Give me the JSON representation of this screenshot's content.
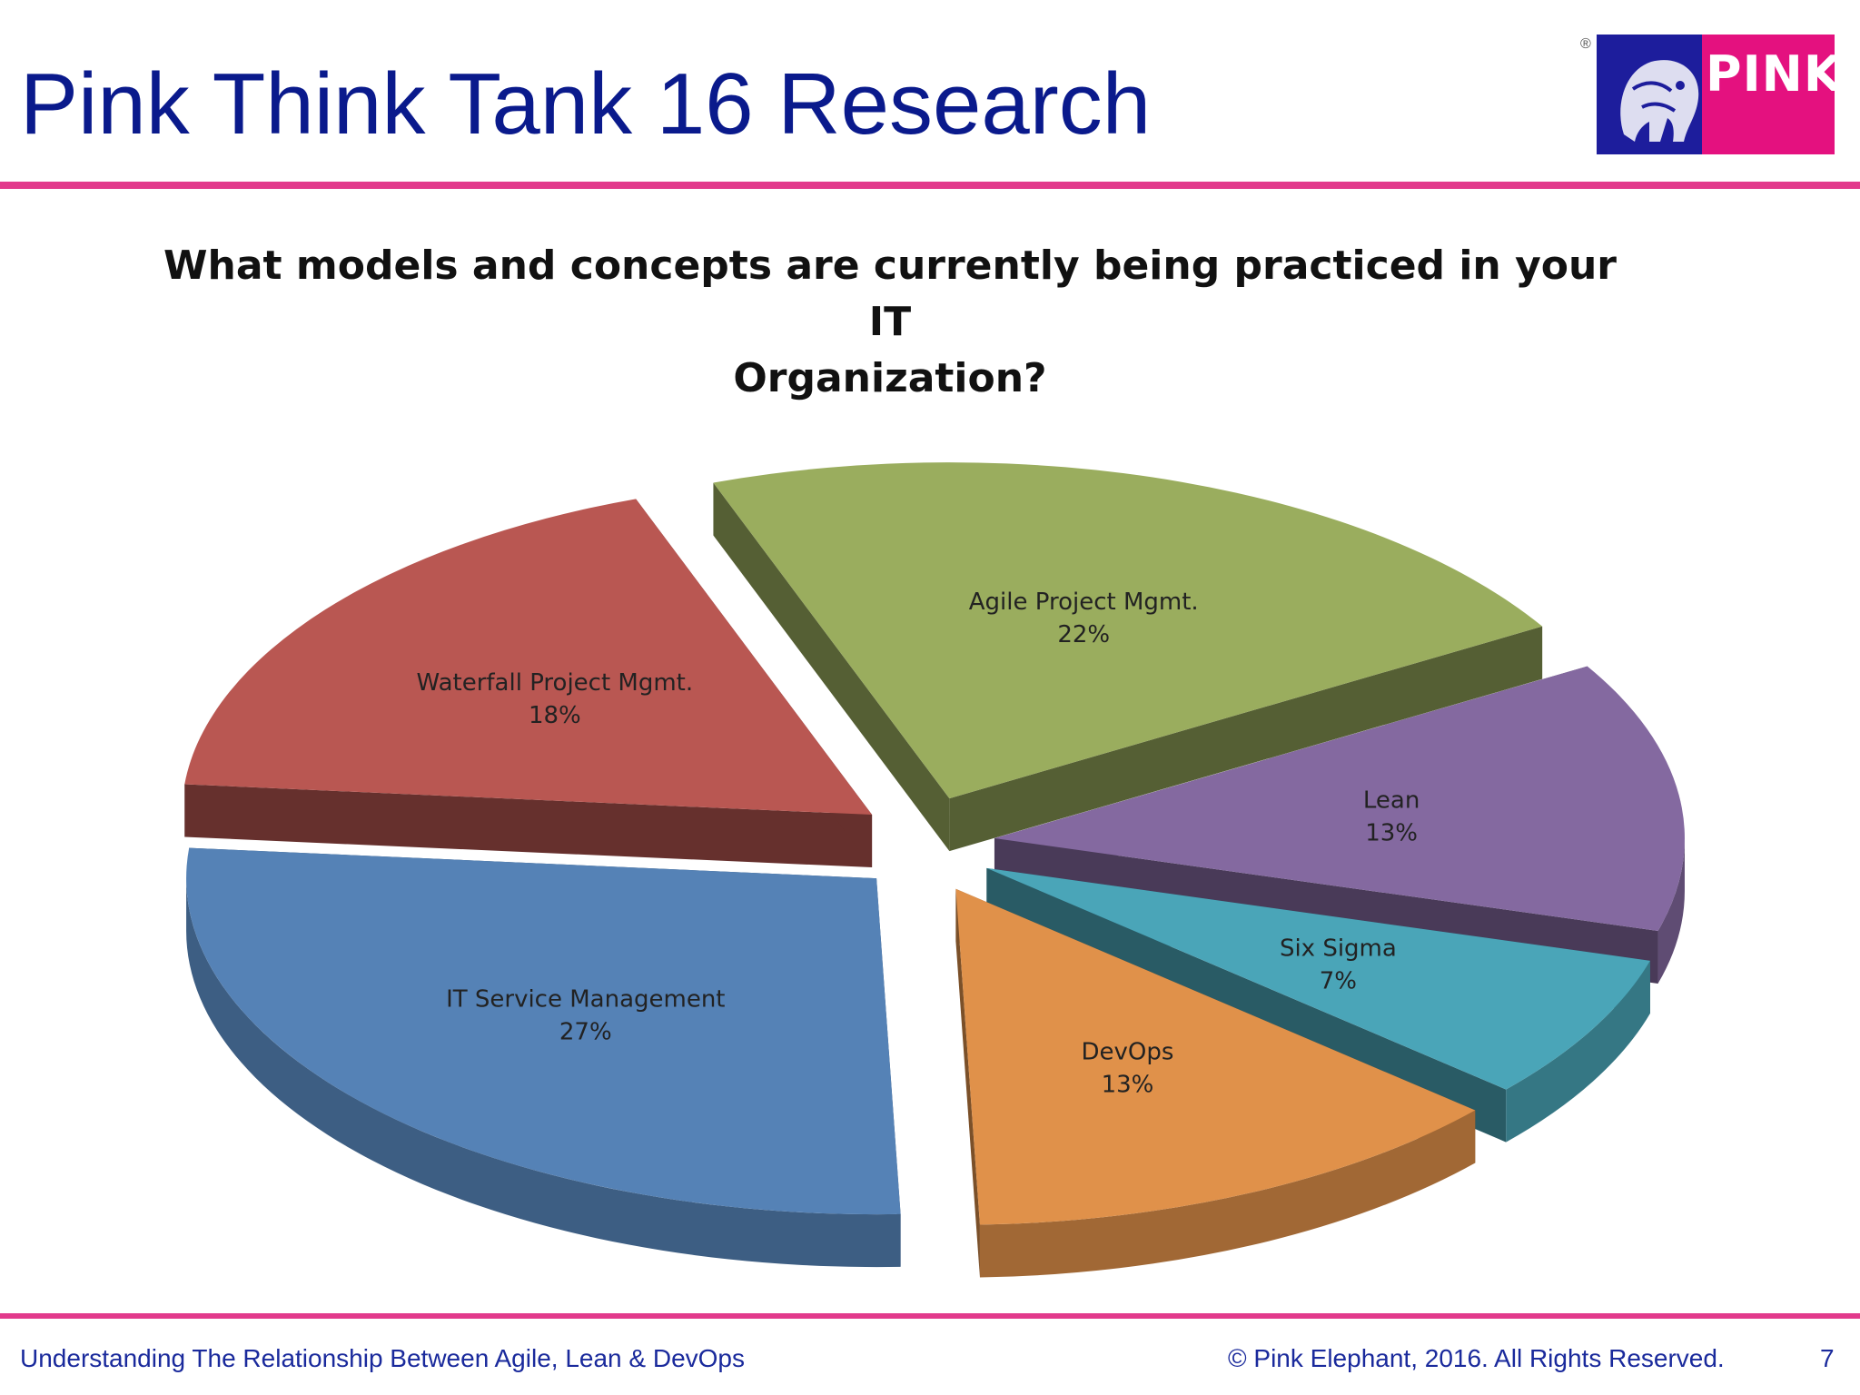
{
  "slide": {
    "title": "Pink Think Tank 16 Research",
    "logo_text": "PINK",
    "footer_left": "Understanding The Relationship Between Agile, Lean & DevOps",
    "footer_right": "© Pink Elephant, 2016. All Rights Reserved.",
    "page_number": "7"
  },
  "colors": {
    "title": "#0a1a8c",
    "rule": "#e23a8c",
    "logo_blue": "#1d1d9c",
    "logo_pink": "#e4117f"
  },
  "chart_data": {
    "type": "pie",
    "title_line1": "What models and concepts are currently being practiced in your IT",
    "title_line2": "Organization?",
    "style": "3d-exploded",
    "unit": "%",
    "slices": [
      {
        "label": "Agile Project Mgmt.",
        "value": 22,
        "display": "22%",
        "color": "#9aad5e"
      },
      {
        "label": "Lean",
        "value": 13,
        "display": "13%",
        "color": "#8469a0"
      },
      {
        "label": "Six Sigma",
        "value": 7,
        "display": "7%",
        "color": "#4aa5b8"
      },
      {
        "label": "DevOps",
        "value": 13,
        "display": "13%",
        "color": "#e0914a"
      },
      {
        "label": "IT Service Management",
        "value": 27,
        "display": "27%",
        "color": "#5582b6"
      },
      {
        "label": "Waterfall Project Mgmt.",
        "value": 18,
        "display": "18%",
        "color": "#b95752"
      }
    ]
  }
}
